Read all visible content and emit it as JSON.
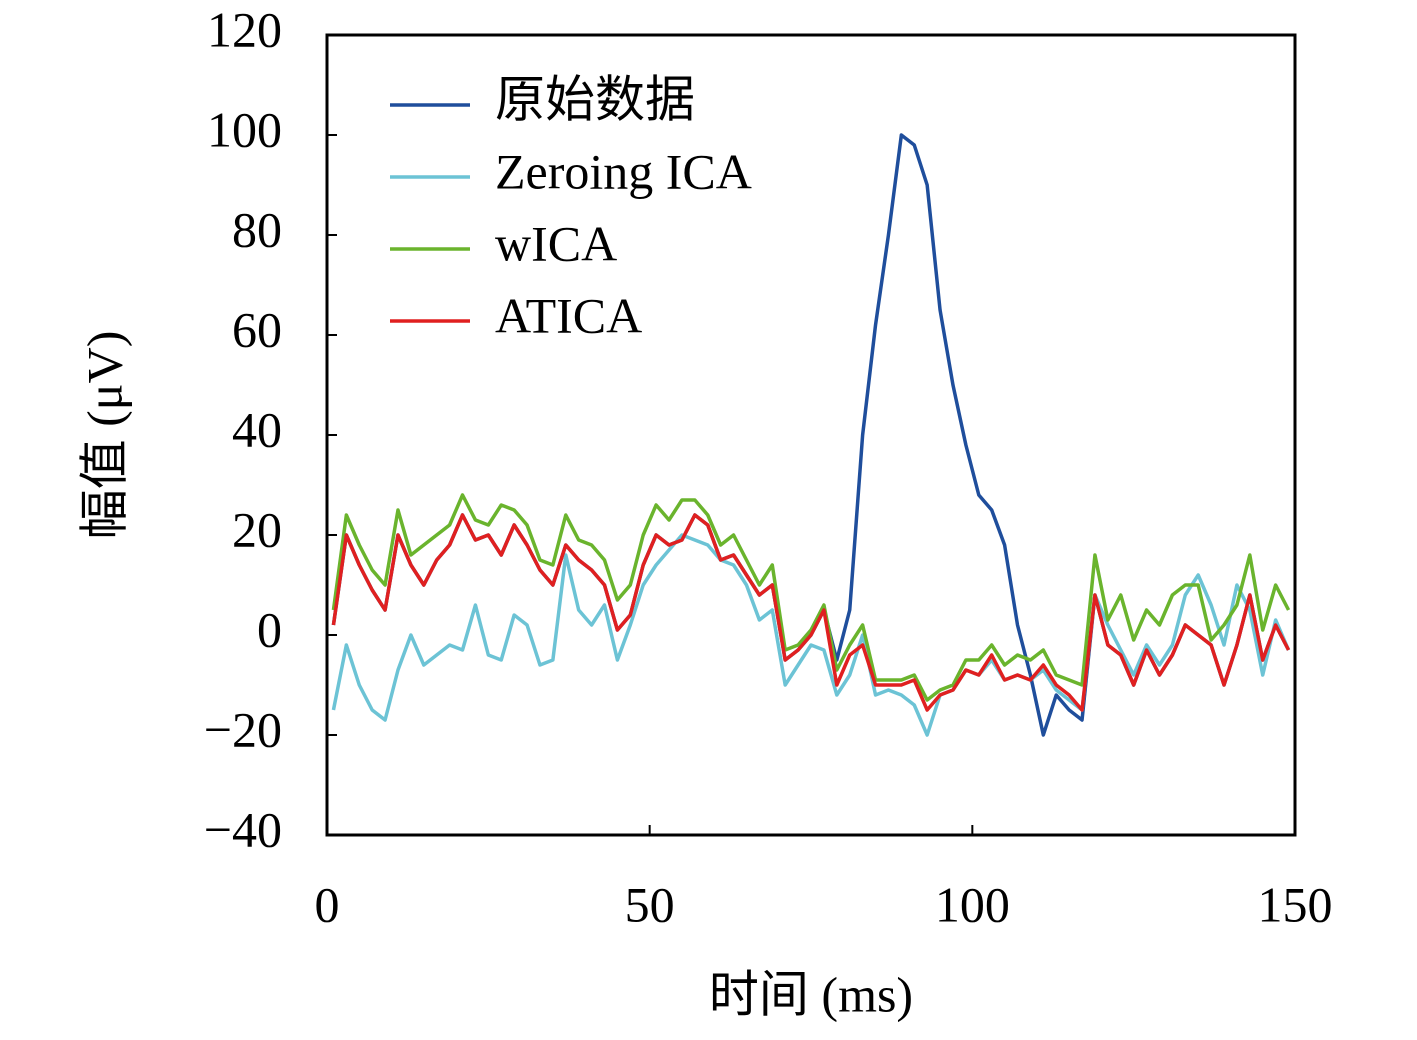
{
  "chart_data": {
    "type": "line",
    "xlabel": "时间 (ms)",
    "ylabel": "幅值 (μV)",
    "x": [
      1,
      3,
      5,
      7,
      9,
      11,
      13,
      15,
      17,
      19,
      21,
      23,
      25,
      27,
      29,
      31,
      33,
      35,
      37,
      39,
      41,
      43,
      45,
      47,
      49,
      51,
      53,
      55,
      57,
      59,
      61,
      63,
      65,
      67,
      69,
      71,
      73,
      75,
      77,
      79,
      81,
      83,
      85,
      87,
      89,
      91,
      93,
      95,
      97,
      99,
      101,
      103,
      105,
      107,
      109,
      111,
      113,
      115,
      117,
      119,
      121,
      123,
      125,
      127,
      129,
      131,
      133,
      135,
      137,
      139,
      141,
      143,
      145,
      147,
      149
    ],
    "series": [
      {
        "name": "原始数据",
        "color": "#1f4e9c",
        "values": [
          2,
          20,
          14,
          9,
          5,
          20,
          14,
          10,
          15,
          18,
          24,
          19,
          20,
          16,
          22,
          18,
          13,
          10,
          18,
          15,
          13,
          10,
          1,
          4,
          14,
          20,
          18,
          19,
          24,
          22,
          15,
          16,
          12,
          8,
          10,
          -5,
          -3,
          0,
          5,
          -5,
          5,
          40,
          62,
          80,
          100,
          98,
          90,
          65,
          50,
          38,
          28,
          25,
          18,
          2,
          -8,
          -20,
          -12,
          -15,
          -17,
          8,
          -2,
          -4,
          -10,
          -3,
          -8,
          -4,
          2,
          0,
          -2,
          -10,
          -2,
          8,
          -5,
          2,
          -3
        ]
      },
      {
        "name": "Zeroing ICA",
        "color": "#6cc3d5",
        "values": [
          -15,
          -2,
          -10,
          -15,
          -17,
          -7,
          0,
          -6,
          -4,
          -2,
          -3,
          6,
          -4,
          -5,
          4,
          2,
          -6,
          -5,
          16,
          5,
          2,
          6,
          -5,
          2,
          10,
          14,
          17,
          20,
          19,
          18,
          15,
          14,
          10,
          3,
          5,
          -10,
          -6,
          -2,
          -3,
          -12,
          -8,
          0,
          -12,
          -11,
          -12,
          -14,
          -20,
          -12,
          -11,
          -7,
          -8,
          -5,
          -9,
          -8,
          -9,
          -7,
          -11,
          -13,
          -15,
          8,
          2,
          -3,
          -8,
          -2,
          -6,
          -2,
          8,
          12,
          6,
          -2,
          10,
          5,
          -8,
          3,
          -3
        ]
      },
      {
        "name": "wICA",
        "color": "#6ab42d",
        "values": [
          5,
          24,
          18,
          13,
          10,
          25,
          16,
          18,
          20,
          22,
          28,
          23,
          22,
          26,
          25,
          22,
          15,
          14,
          24,
          19,
          18,
          15,
          7,
          10,
          20,
          26,
          23,
          27,
          27,
          24,
          18,
          20,
          15,
          10,
          14,
          -3,
          -2,
          1,
          6,
          -7,
          -2,
          2,
          -9,
          -9,
          -9,
          -8,
          -13,
          -11,
          -10,
          -5,
          -5,
          -2,
          -6,
          -4,
          -5,
          -3,
          -8,
          -9,
          -10,
          16,
          3,
          8,
          -1,
          5,
          2,
          8,
          10,
          10,
          -1,
          2,
          6,
          16,
          1,
          10,
          5
        ]
      },
      {
        "name": "ATICA",
        "color": "#e02020",
        "values": [
          2,
          20,
          14,
          9,
          5,
          20,
          14,
          10,
          15,
          18,
          24,
          19,
          20,
          16,
          22,
          18,
          13,
          10,
          18,
          15,
          13,
          10,
          1,
          4,
          14,
          20,
          18,
          19,
          24,
          22,
          15,
          16,
          12,
          8,
          10,
          -5,
          -3,
          0,
          5,
          -10,
          -4,
          -2,
          -10,
          -10,
          -10,
          -9,
          -15,
          -12,
          -11,
          -7,
          -8,
          -4,
          -9,
          -8,
          -9,
          -6,
          -10,
          -12,
          -15,
          8,
          -2,
          -4,
          -10,
          -3,
          -8,
          -4,
          2,
          0,
          -2,
          -10,
          -2,
          8,
          -5,
          2,
          -3
        ]
      }
    ],
    "xlim": [
      0,
      150
    ],
    "xticks": [
      0,
      50,
      100,
      150
    ],
    "ylim": [
      -40,
      120
    ],
    "yticks": [
      {
        "value": -40,
        "label": "−40"
      },
      {
        "value": -20,
        "label": "−20"
      },
      0,
      20,
      40,
      60,
      80,
      100,
      120
    ],
    "legend": "upper left"
  }
}
